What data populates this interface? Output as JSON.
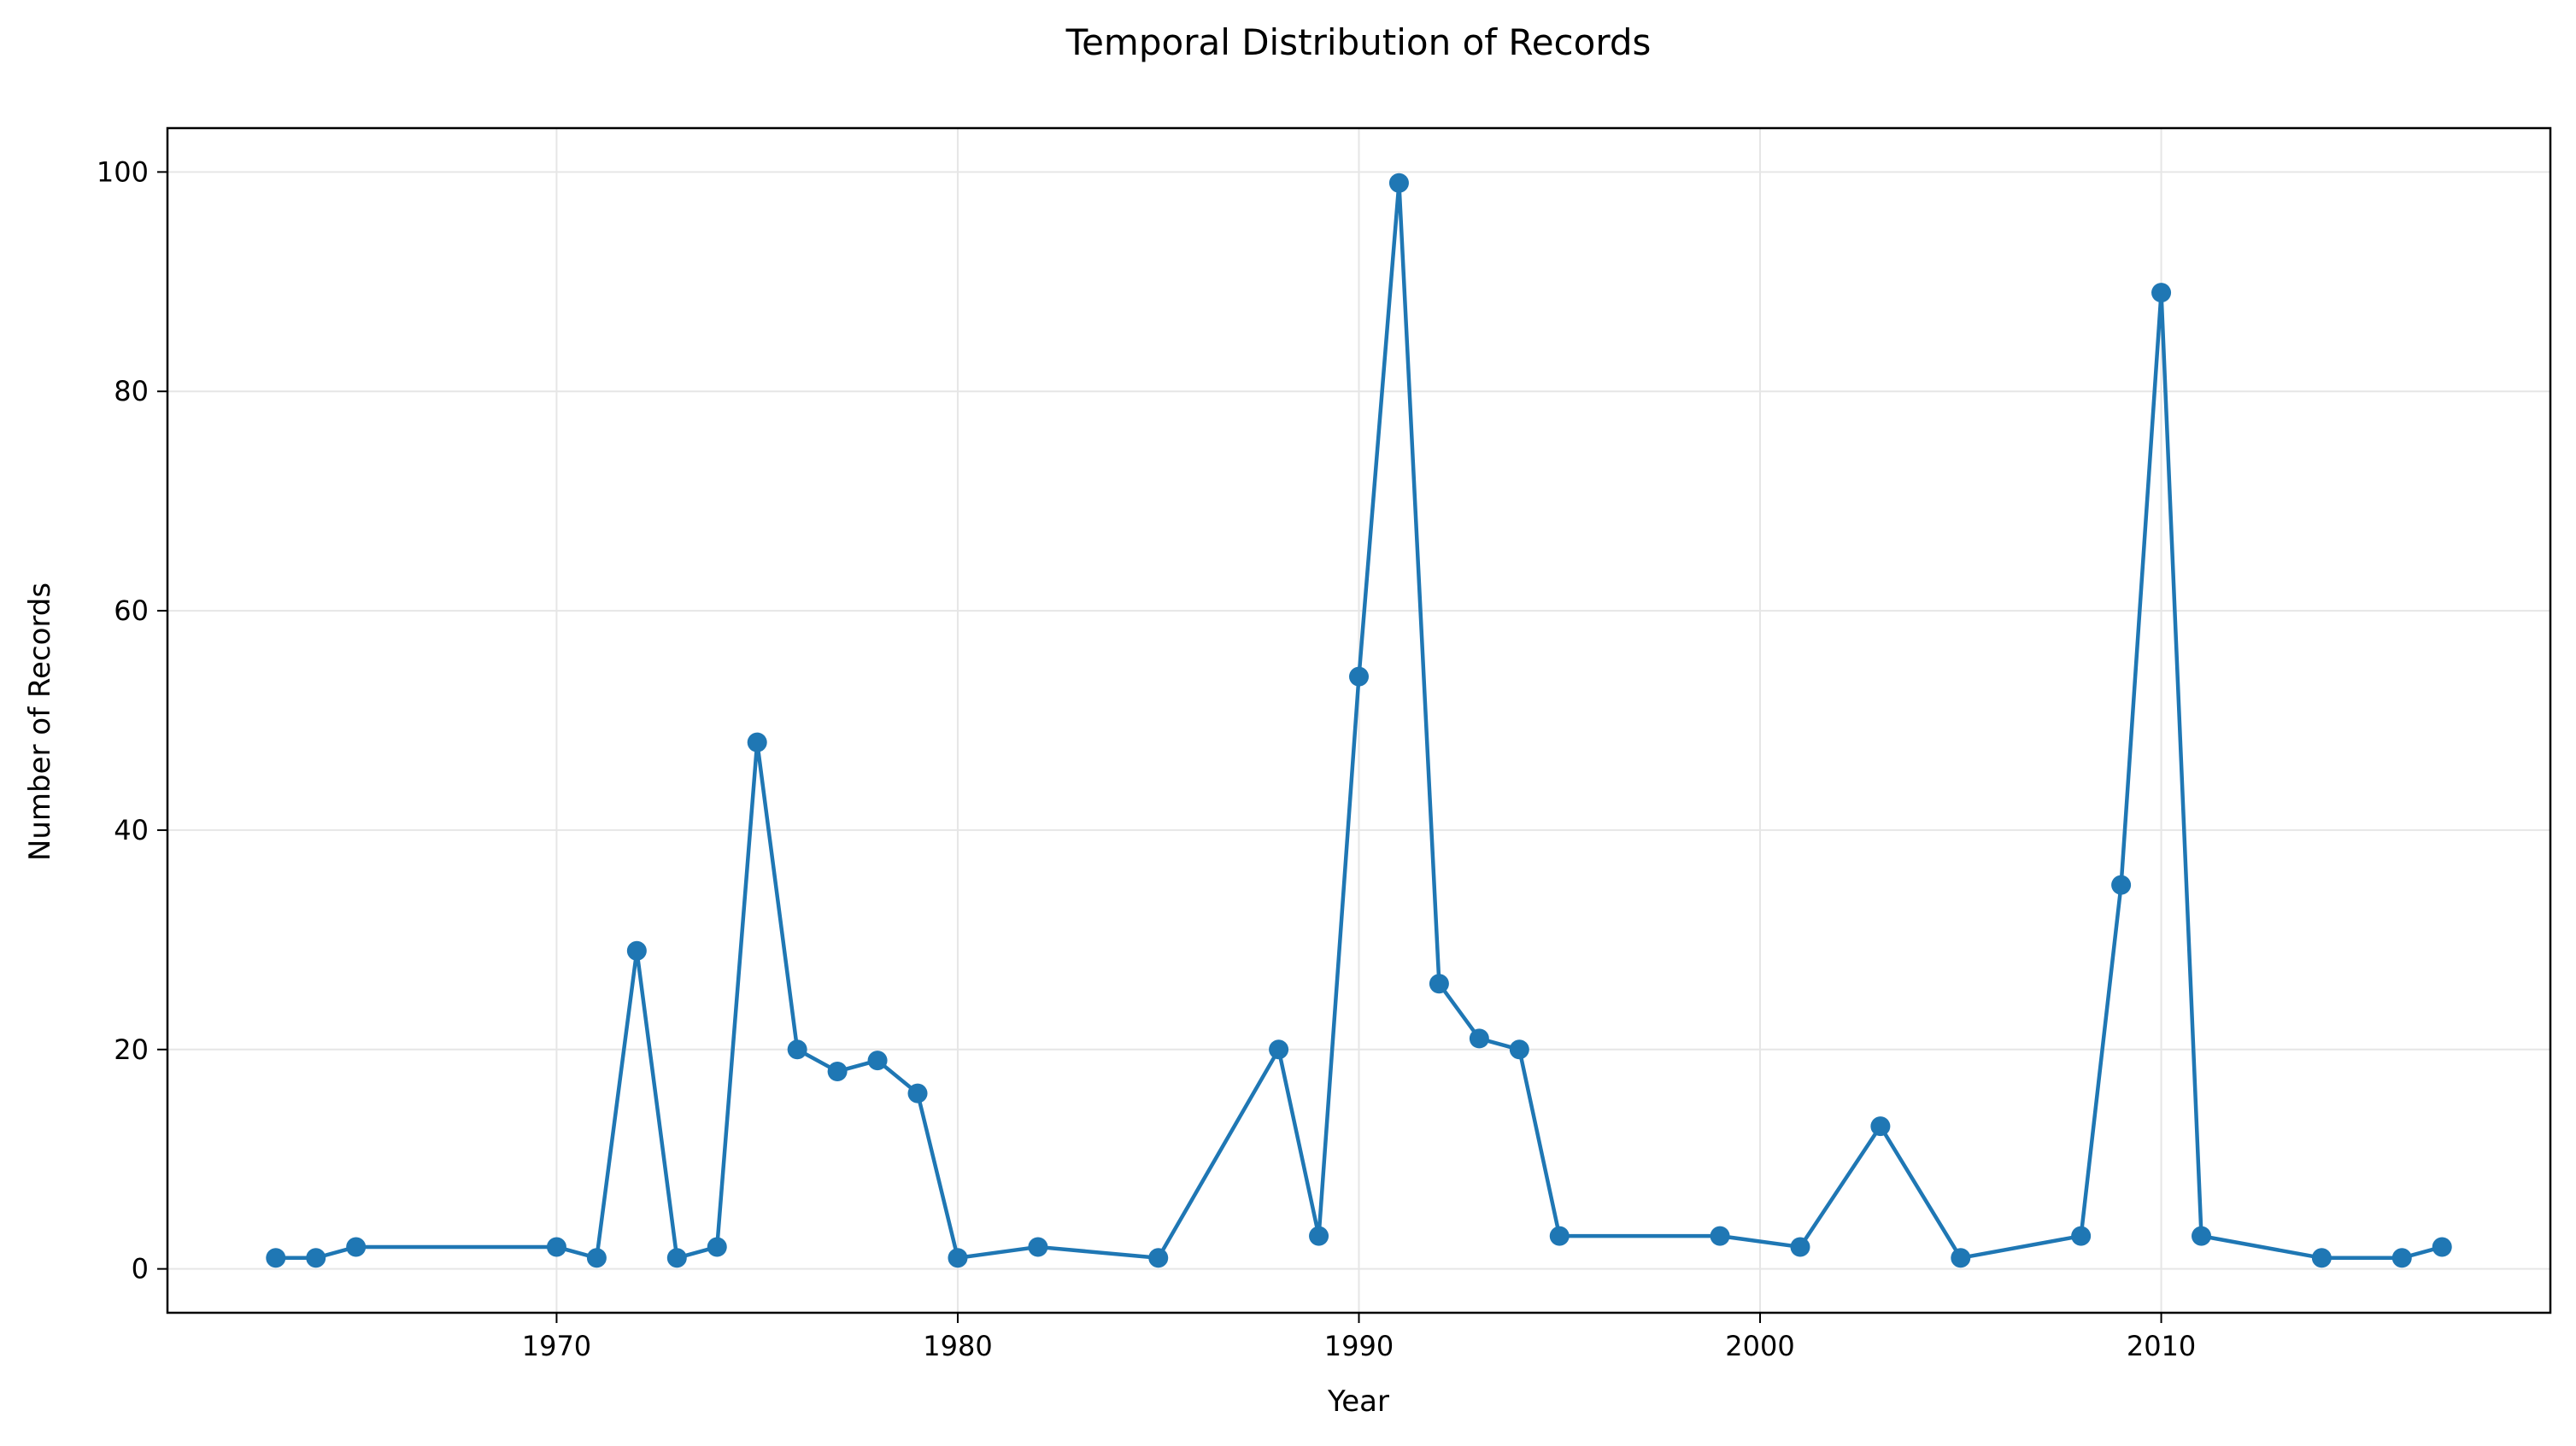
{
  "chart_data": {
    "type": "line",
    "title": "Temporal Distribution of Records",
    "xlabel": "Year",
    "ylabel": "Number of Records",
    "xlim": [
      1960.3,
      2019.7
    ],
    "ylim": [
      -4,
      104
    ],
    "xticks": [
      1970,
      1980,
      1990,
      2000,
      2010
    ],
    "yticks": [
      0,
      20,
      40,
      60,
      80,
      100
    ],
    "grid": true,
    "legend": "none",
    "colors": {
      "line": "#1f77b4",
      "grid": "#e6e6e6",
      "axis": "#000000"
    },
    "series": [
      {
        "x": [
          1963,
          1964,
          1965,
          1970,
          1971,
          1972,
          1973,
          1974,
          1975,
          1976,
          1977,
          1978,
          1979,
          1980,
          1982,
          1985,
          1988,
          1989,
          1990,
          1991,
          1992,
          1993,
          1994,
          1995,
          1999,
          2001,
          2003,
          2005,
          2008,
          2009,
          2010,
          2011,
          2014,
          2016,
          2017
        ],
        "values": [
          1,
          1,
          2,
          2,
          1,
          29,
          1,
          2,
          48,
          20,
          18,
          19,
          16,
          1,
          2,
          1,
          20,
          3,
          54,
          99,
          26,
          21,
          20,
          3,
          3,
          2,
          13,
          1,
          3,
          35,
          89,
          3,
          1,
          1,
          2
        ]
      }
    ]
  }
}
